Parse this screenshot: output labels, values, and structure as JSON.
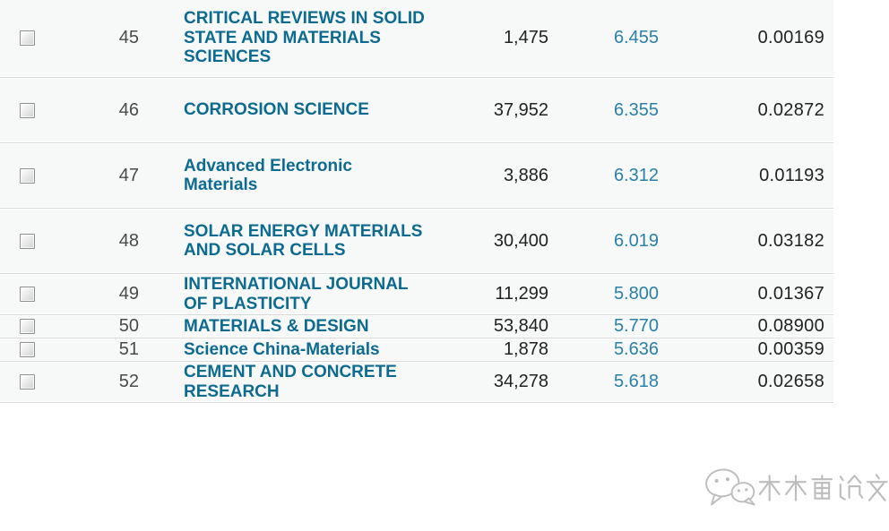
{
  "accent": {
    "journal_link_color": "#0d6a90",
    "impact_link_color": "#2a80a8",
    "row_background": "#f7f8f8",
    "divider_color": "#d8d8d8"
  },
  "table": {
    "columns": [
      "select",
      "rank",
      "journal_name",
      "total_cites",
      "impact_factor",
      "eigenfactor"
    ],
    "rows": [
      {
        "rank": "45",
        "name": "CRITICAL REVIEWS IN SOLID\nSTATE AND MATERIALS\nSCIENCES",
        "cites": "1,475",
        "impact_factor": "6.455",
        "eigenfactor": "0.00169"
      },
      {
        "rank": "46",
        "name": "CORROSION SCIENCE",
        "cites": "37,952",
        "impact_factor": "6.355",
        "eigenfactor": "0.02872"
      },
      {
        "rank": "47",
        "name": "Advanced Electronic\nMaterials",
        "cites": "3,886",
        "impact_factor": "6.312",
        "eigenfactor": "0.01193"
      },
      {
        "rank": "48",
        "name": "SOLAR ENERGY MATERIALS\nAND SOLAR CELLS",
        "cites": "30,400",
        "impact_factor": "6.019",
        "eigenfactor": "0.03182"
      },
      {
        "rank": "49",
        "name": "INTERNATIONAL JOURNAL\nOF PLASTICITY",
        "cites": "11,299",
        "impact_factor": "5.800",
        "eigenfactor": "0.01367"
      },
      {
        "rank": "50",
        "name": "MATERIALS & DESIGN",
        "cites": "53,840",
        "impact_factor": "5.770",
        "eigenfactor": "0.08900"
      },
      {
        "rank": "51",
        "name": "Science China-Materials",
        "cites": "1,878",
        "impact_factor": "5.636",
        "eigenfactor": "0.00359"
      },
      {
        "rank": "52",
        "name": "CEMENT AND CONCRETE\nRESEARCH",
        "cites": "34,278",
        "impact_factor": "5.618",
        "eigenfactor": "0.02658"
      }
    ]
  },
  "watermark": {
    "text": "木木窝论文",
    "icon": "wechat-icon"
  }
}
